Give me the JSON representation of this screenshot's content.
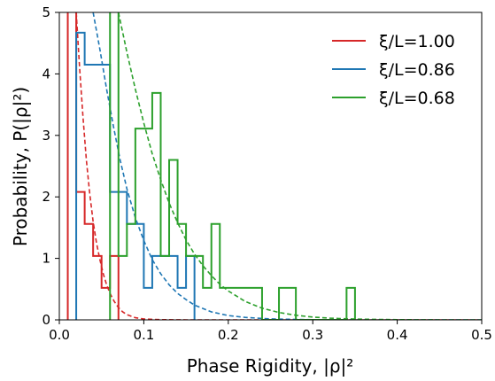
{
  "chart_data": {
    "type": "line",
    "xlabel": "Phase Rigidity, |ρ|²",
    "ylabel": "Probability, P(|ρ|²)",
    "xlim": [
      0,
      0.5
    ],
    "ylim": [
      0,
      5
    ],
    "xticks": [
      0.0,
      0.1,
      0.2,
      0.3,
      0.4,
      0.5
    ],
    "xtick_labels": [
      "0.0",
      "0.1",
      "0.2",
      "0.3",
      "0.4",
      "0.5"
    ],
    "yticks": [
      0,
      1,
      2,
      3,
      4,
      5
    ],
    "ytick_labels": [
      "0",
      "1",
      "2",
      "3",
      "4",
      "5"
    ],
    "grid": false,
    "legend_position": "top-right",
    "series": [
      {
        "name": "ξ/L=1.00",
        "color": "#d62728",
        "histogram_step": [
          [
            0.01,
            0
          ],
          [
            0.01,
            5.2
          ],
          [
            0.02,
            5.2
          ],
          [
            0.02,
            2.08
          ],
          [
            0.03,
            2.08
          ],
          [
            0.03,
            1.56
          ],
          [
            0.04,
            1.56
          ],
          [
            0.04,
            1.04
          ],
          [
            0.05,
            1.04
          ],
          [
            0.05,
            0.52
          ],
          [
            0.06,
            0.52
          ],
          [
            0.06,
            1.04
          ],
          [
            0.07,
            1.04
          ],
          [
            0.07,
            0
          ]
        ],
        "fit_curve": [
          [
            0.02,
            5.0
          ],
          [
            0.024,
            4.1
          ],
          [
            0.028,
            3.3
          ],
          [
            0.032,
            2.6
          ],
          [
            0.036,
            2.05
          ],
          [
            0.04,
            1.6
          ],
          [
            0.044,
            1.25
          ],
          [
            0.048,
            0.98
          ],
          [
            0.052,
            0.75
          ],
          [
            0.056,
            0.57
          ],
          [
            0.06,
            0.43
          ],
          [
            0.065,
            0.3
          ],
          [
            0.07,
            0.2
          ],
          [
            0.075,
            0.13
          ],
          [
            0.08,
            0.085
          ],
          [
            0.09,
            0.035
          ],
          [
            0.1,
            0.015
          ],
          [
            0.12,
            0.003
          ],
          [
            0.15,
            0.0
          ],
          [
            0.5,
            0.0
          ]
        ]
      },
      {
        "name": "ξ/L=0.86",
        "color": "#1f77b4",
        "histogram_step": [
          [
            0.02,
            0
          ],
          [
            0.02,
            4.67
          ],
          [
            0.03,
            4.67
          ],
          [
            0.03,
            4.15
          ],
          [
            0.06,
            4.15
          ],
          [
            0.06,
            2.08
          ],
          [
            0.08,
            2.08
          ],
          [
            0.08,
            1.56
          ],
          [
            0.1,
            1.56
          ],
          [
            0.1,
            0.52
          ],
          [
            0.11,
            0.52
          ],
          [
            0.11,
            1.04
          ],
          [
            0.14,
            1.04
          ],
          [
            0.14,
            0.52
          ],
          [
            0.15,
            0.52
          ],
          [
            0.15,
            1.04
          ],
          [
            0.16,
            1.04
          ],
          [
            0.16,
            0
          ]
        ],
        "fit_curve": [
          [
            0.04,
            5.0
          ],
          [
            0.048,
            4.4
          ],
          [
            0.056,
            3.75
          ],
          [
            0.064,
            3.15
          ],
          [
            0.072,
            2.6
          ],
          [
            0.08,
            2.13
          ],
          [
            0.09,
            1.66
          ],
          [
            0.1,
            1.29
          ],
          [
            0.11,
            0.98
          ],
          [
            0.12,
            0.75
          ],
          [
            0.13,
            0.57
          ],
          [
            0.14,
            0.43
          ],
          [
            0.15,
            0.33
          ],
          [
            0.16,
            0.24
          ],
          [
            0.18,
            0.13
          ],
          [
            0.2,
            0.07
          ],
          [
            0.22,
            0.04
          ],
          [
            0.25,
            0.015
          ],
          [
            0.3,
            0.003
          ],
          [
            0.35,
            0.0
          ],
          [
            0.5,
            0.0
          ]
        ]
      },
      {
        "name": "ξ/L=0.68",
        "color": "#2ca02c",
        "histogram_step": [
          [
            0.06,
            0
          ],
          [
            0.06,
            5.2
          ],
          [
            0.07,
            5.2
          ],
          [
            0.07,
            1.04
          ],
          [
            0.08,
            1.04
          ],
          [
            0.08,
            1.56
          ],
          [
            0.09,
            1.56
          ],
          [
            0.09,
            3.11
          ],
          [
            0.1,
            3.11
          ],
          [
            0.1,
            3.11
          ],
          [
            0.11,
            3.11
          ],
          [
            0.11,
            3.69
          ],
          [
            0.12,
            3.69
          ],
          [
            0.12,
            1.04
          ],
          [
            0.13,
            1.04
          ],
          [
            0.13,
            2.6
          ],
          [
            0.14,
            2.6
          ],
          [
            0.14,
            1.56
          ],
          [
            0.15,
            1.56
          ],
          [
            0.15,
            1.04
          ],
          [
            0.16,
            1.04
          ],
          [
            0.16,
            1.04
          ],
          [
            0.17,
            1.04
          ],
          [
            0.17,
            0.52
          ],
          [
            0.18,
            0.52
          ],
          [
            0.18,
            1.56
          ],
          [
            0.19,
            1.56
          ],
          [
            0.19,
            0.52
          ],
          [
            0.2,
            0.52
          ],
          [
            0.2,
            0.52
          ],
          [
            0.24,
            0.52
          ],
          [
            0.24,
            0.0
          ],
          [
            0.26,
            0.0
          ],
          [
            0.26,
            0.52
          ],
          [
            0.28,
            0.52
          ],
          [
            0.28,
            0.0
          ],
          [
            0.34,
            0.0
          ],
          [
            0.34,
            0.52
          ],
          [
            0.35,
            0.52
          ],
          [
            0.35,
            0
          ]
        ],
        "fit_curve": [
          [
            0.07,
            5.0
          ],
          [
            0.08,
            4.35
          ],
          [
            0.09,
            3.75
          ],
          [
            0.1,
            3.2
          ],
          [
            0.11,
            2.7
          ],
          [
            0.12,
            2.28
          ],
          [
            0.13,
            1.9
          ],
          [
            0.14,
            1.58
          ],
          [
            0.15,
            1.3
          ],
          [
            0.16,
            1.07
          ],
          [
            0.17,
            0.88
          ],
          [
            0.18,
            0.72
          ],
          [
            0.19,
            0.58
          ],
          [
            0.2,
            0.47
          ],
          [
            0.22,
            0.3
          ],
          [
            0.24,
            0.19
          ],
          [
            0.26,
            0.12
          ],
          [
            0.28,
            0.075
          ],
          [
            0.3,
            0.045
          ],
          [
            0.32,
            0.028
          ],
          [
            0.35,
            0.013
          ],
          [
            0.4,
            0.003
          ],
          [
            0.45,
            0.0
          ],
          [
            0.5,
            0.0
          ]
        ]
      }
    ]
  }
}
